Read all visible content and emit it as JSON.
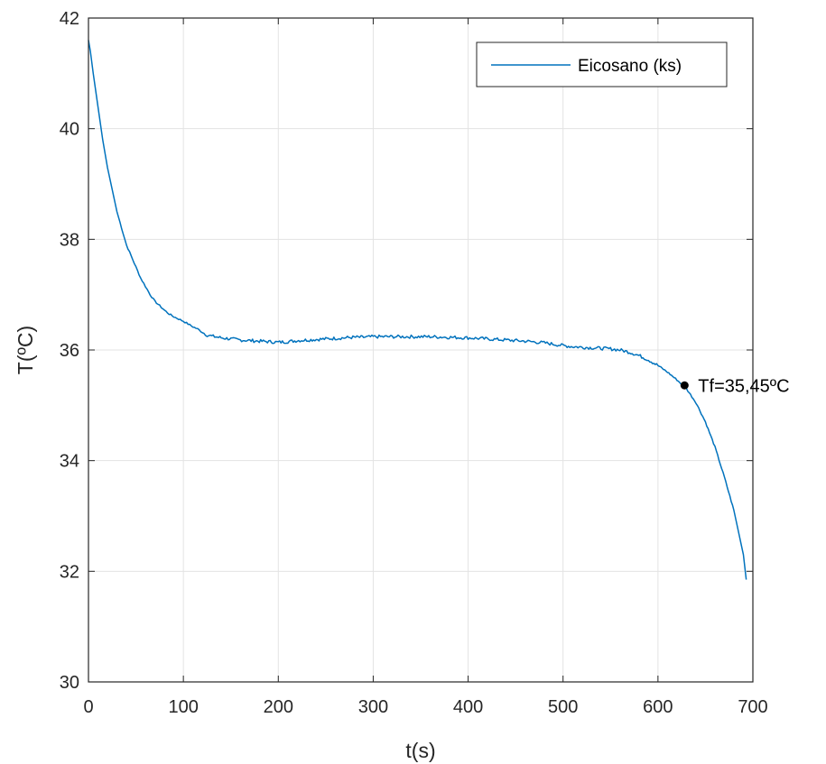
{
  "chart_data": {
    "type": "line",
    "title": "",
    "xlabel": "t(s)",
    "ylabel": "T(ºC)",
    "xlim": [
      0,
      700
    ],
    "ylim": [
      30,
      42
    ],
    "xticks": [
      0,
      100,
      200,
      300,
      400,
      500,
      600,
      700
    ],
    "yticks": [
      30,
      32,
      34,
      36,
      38,
      40,
      42
    ],
    "grid": true,
    "legend_position": "top-right",
    "colors": {
      "series": "#0072bd",
      "axes": "#262626",
      "grid": "#e3e3e3",
      "marker": "#000000"
    },
    "series": [
      {
        "name": "Eicosano (ks)",
        "x": [
          0,
          2,
          5,
          10,
          15,
          20,
          25,
          30,
          35,
          40,
          45,
          50,
          55,
          60,
          65,
          70,
          75,
          80,
          85,
          90,
          95,
          100,
          105,
          110,
          115,
          120,
          125,
          130,
          140,
          150,
          160,
          170,
          180,
          190,
          200,
          210,
          220,
          230,
          240,
          250,
          260,
          270,
          280,
          290,
          300,
          320,
          340,
          360,
          380,
          400,
          420,
          440,
          460,
          480,
          500,
          510,
          520,
          530,
          540,
          550,
          560,
          570,
          580,
          590,
          600,
          610,
          620,
          630,
          640,
          650,
          660,
          670,
          680,
          690,
          693
        ],
        "y": [
          41.6,
          41.4,
          41.0,
          40.4,
          39.8,
          39.3,
          38.9,
          38.5,
          38.2,
          37.9,
          37.7,
          37.5,
          37.3,
          37.15,
          37.0,
          36.88,
          36.8,
          36.72,
          36.65,
          36.6,
          36.56,
          36.52,
          36.47,
          36.42,
          36.38,
          36.32,
          36.27,
          36.25,
          36.22,
          36.2,
          36.18,
          36.17,
          36.16,
          36.15,
          36.14,
          36.15,
          36.17,
          36.18,
          36.19,
          36.2,
          36.21,
          36.22,
          36.23,
          36.23,
          36.24,
          36.24,
          36.24,
          36.24,
          36.23,
          36.22,
          36.2,
          36.18,
          36.16,
          36.13,
          36.08,
          36.06,
          36.05,
          36.04,
          36.03,
          36.02,
          36.0,
          35.96,
          35.9,
          35.82,
          35.72,
          35.6,
          35.46,
          35.3,
          35.05,
          34.7,
          34.25,
          33.7,
          33.1,
          32.3,
          31.85
        ]
      }
    ],
    "annotations": [
      {
        "x": 628,
        "y": 35.36,
        "text": "Tf=35,45ºC"
      }
    ]
  }
}
